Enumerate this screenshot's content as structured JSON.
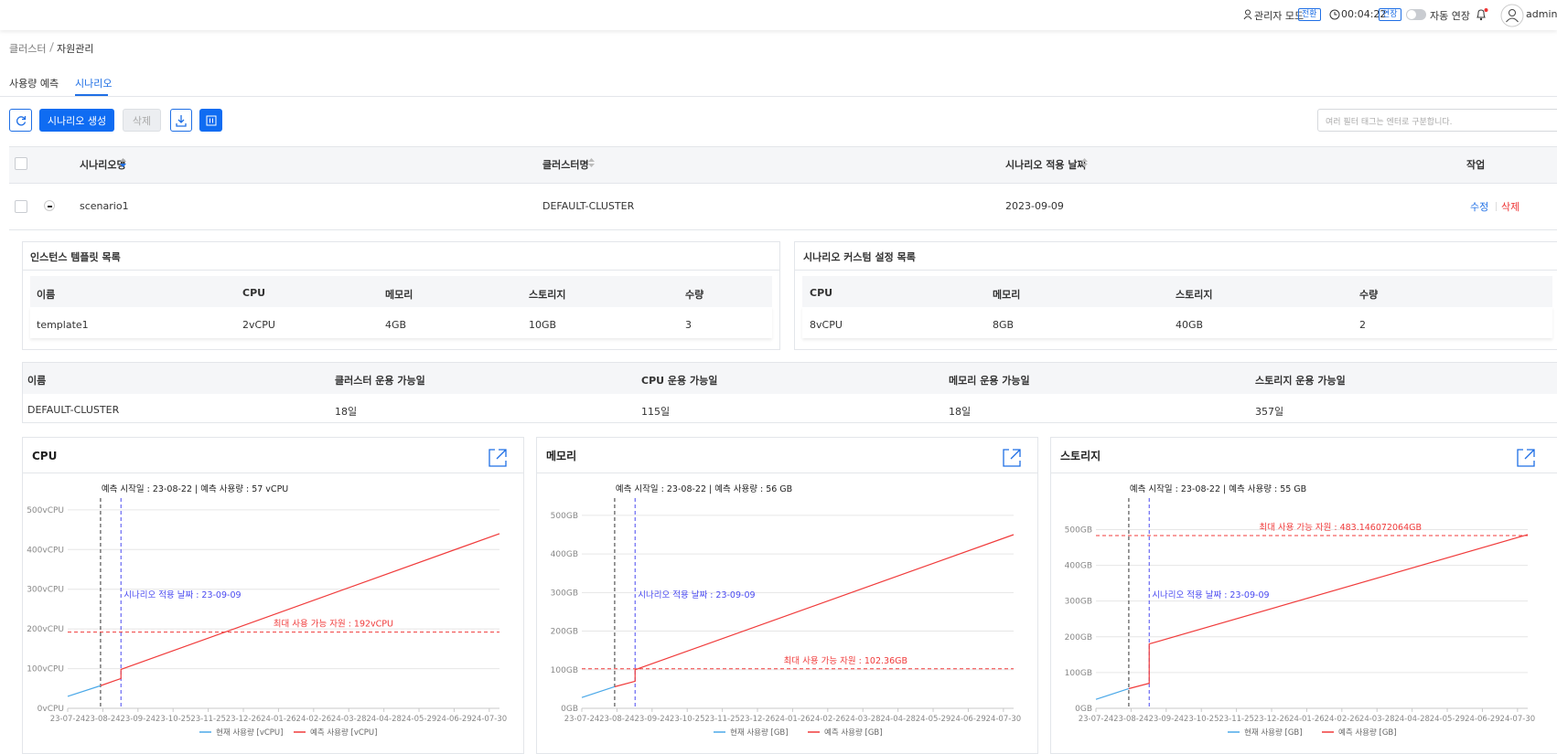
{
  "header": {
    "admin_mode": "관리자 모드",
    "switch": "전환",
    "timer": "00:04:22",
    "extend": "연장",
    "auto_extend": "자동 연장",
    "user": "admin"
  },
  "breadcrumb": [
    "클러스터",
    "자원관리"
  ],
  "tabs": [
    "사용량 예측",
    "시나리오"
  ],
  "active_tab": 1,
  "toolbar": {
    "create": "시나리오 생성",
    "delete": "삭제",
    "search_placeholder": "여러 필터 태그는 엔터로 구분합니다."
  },
  "scenario_table": {
    "columns": [
      "시나리오명",
      "클러스터명",
      "시나리오 적용 날짜",
      "작업"
    ],
    "rows": [
      [
        "scenario1",
        "DEFAULT-CLUSTER",
        "2023-09-09"
      ]
    ],
    "actions": [
      "수정",
      "삭제"
    ]
  },
  "template_list": {
    "title": "인스턴스 템플릿 목록",
    "columns": [
      "이름",
      "CPU",
      "메모리",
      "스토리지",
      "수량"
    ],
    "rows": [
      [
        "template1",
        "2vCPU",
        "4GB",
        "10GB",
        "3"
      ]
    ]
  },
  "custom_list": {
    "title": "시나리오 커스텀 설정 목록",
    "columns": [
      "CPU",
      "메모리",
      "스토리지",
      "수량"
    ],
    "rows": [
      [
        "8vCPU",
        "8GB",
        "40GB",
        "2"
      ]
    ]
  },
  "availability": {
    "columns": [
      "이름",
      "클러스터 운용 가능일",
      "CPU 운용 가능일",
      "메모리 운용 가능일",
      "스토리지 운용 가능일"
    ],
    "rows": [
      [
        "DEFAULT-CLUSTER",
        "18일",
        "115일",
        "18일",
        "357일"
      ]
    ]
  },
  "chart_data": [
    {
      "type": "line",
      "title": "CPU",
      "annotation": "예측 시작일 : 23-08-22 | 예측 사용량 : 57 vCPU",
      "scenario_label": "시나리오 적용 날짜 : 23-09-09",
      "max_label": "최대 사용 가능 자원 : 192vCPU",
      "max_value": 192,
      "predict_start": "23-08-22",
      "scenario_date": "23-09-09",
      "series": [
        {
          "name": "현재 사용량 [vCPU]",
          "color": "#4aa8e8",
          "x": [
            "23-07-24",
            "23-08-22"
          ],
          "values": [
            30,
            57
          ]
        },
        {
          "name": "예측 사용량 [vCPU]",
          "color": "#f03b3b",
          "x": [
            "23-08-22",
            "23-09-09",
            "23-09-09",
            "24-08-08"
          ],
          "values": [
            57,
            75,
            98,
            440
          ]
        }
      ],
      "xlim": [
        "23-07-24",
        "24-08-08"
      ],
      "xticks": [
        "23-07-24",
        "23-08-24",
        "23-09-24",
        "23-10-25",
        "23-11-25",
        "23-12-26",
        "24-01-26",
        "24-02-26",
        "24-03-28",
        "24-04-28",
        "24-05-29",
        "24-06-29",
        "24-07-30"
      ],
      "ylim": [
        0,
        525
      ],
      "yticks": [
        {
          "value": 0,
          "label": "0vCPU"
        },
        {
          "value": 100,
          "label": "100vCPU"
        },
        {
          "value": 200,
          "label": "200vCPU"
        },
        {
          "value": 300,
          "label": "300vCPU"
        },
        {
          "value": 400,
          "label": "400vCPU"
        },
        {
          "value": 500,
          "label": "500vCPU"
        }
      ],
      "grid": true
    },
    {
      "type": "line",
      "title": "메모리",
      "annotation": "예측 시작일 : 23-08-22 | 예측 사용량 : 56 GB",
      "scenario_label": "시나리오 적용 날짜 : 23-09-09",
      "max_label": "최대 사용 가능 자원 : 102.36GB",
      "max_value": 102.36,
      "predict_start": "23-08-22",
      "scenario_date": "23-09-09",
      "series": [
        {
          "name": "현재 사용량 [GB]",
          "color": "#4aa8e8",
          "x": [
            "23-07-24",
            "23-08-22"
          ],
          "values": [
            28,
            56
          ]
        },
        {
          "name": "예측 사용량 [GB]",
          "color": "#f03b3b",
          "x": [
            "23-08-22",
            "23-09-09",
            "23-09-09",
            "24-08-08"
          ],
          "values": [
            56,
            70,
            100,
            450
          ]
        }
      ],
      "xlim": [
        "23-07-24",
        "24-08-08"
      ],
      "xticks": [
        "23-07-24",
        "23-08-24",
        "23-09-24",
        "23-10-25",
        "23-11-25",
        "23-12-26",
        "24-01-26",
        "24-02-26",
        "24-03-28",
        "24-04-28",
        "24-05-29",
        "24-06-29",
        "24-07-30"
      ],
      "ylim": [
        0,
        540
      ],
      "yticks": [
        {
          "value": 0,
          "label": "0GB"
        },
        {
          "value": 100,
          "label": "100GB"
        },
        {
          "value": 200,
          "label": "200GB"
        },
        {
          "value": 300,
          "label": "300GB"
        },
        {
          "value": 400,
          "label": "400GB"
        },
        {
          "value": 500,
          "label": "500GB"
        }
      ],
      "grid": true
    },
    {
      "type": "line",
      "title": "스토리지",
      "annotation": "예측 시작일 : 23-08-22 | 예측 사용량 : 55 GB",
      "scenario_label": "시나리오 적용 날짜 : 23-09-09",
      "max_label": "최대 사용 가능 자원 : 483.146072064GB",
      "max_value": 483.146072064,
      "predict_start": "23-08-22",
      "scenario_date": "23-09-09",
      "series": [
        {
          "name": "현재 사용량 [GB]",
          "color": "#4aa8e8",
          "x": [
            "23-07-24",
            "23-08-22"
          ],
          "values": [
            25,
            55
          ]
        },
        {
          "name": "예측 사용량 [GB]",
          "color": "#f03b3b",
          "x": [
            "23-08-22",
            "23-09-09",
            "23-09-09",
            "24-08-08"
          ],
          "values": [
            55,
            70,
            180,
            486
          ]
        }
      ],
      "xlim": [
        "23-07-24",
        "24-08-08"
      ],
      "xticks": [
        "23-07-24",
        "23-08-24",
        "23-09-24",
        "23-10-25",
        "23-11-25",
        "23-12-26",
        "24-01-26",
        "24-02-26",
        "24-03-28",
        "24-04-28",
        "24-05-29",
        "24-06-29",
        "24-07-30"
      ],
      "ylim": [
        0,
        583
      ],
      "yticks": [
        {
          "value": 0,
          "label": "0GB"
        },
        {
          "value": 100,
          "label": "100GB"
        },
        {
          "value": 200,
          "label": "200GB"
        },
        {
          "value": 300,
          "label": "300GB"
        },
        {
          "value": 400,
          "label": "400GB"
        },
        {
          "value": 500,
          "label": "500GB"
        }
      ],
      "grid": true
    }
  ]
}
